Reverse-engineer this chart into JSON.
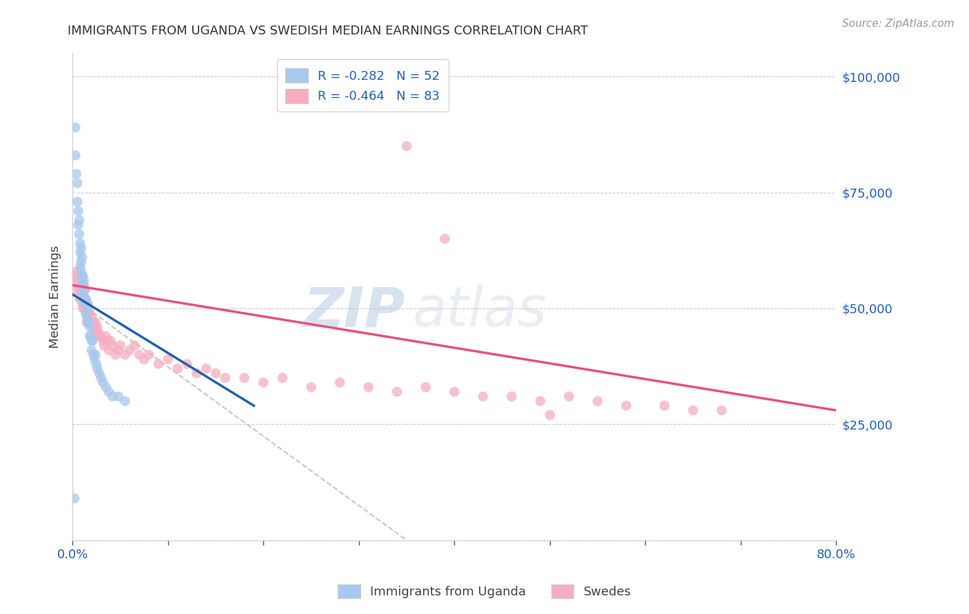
{
  "title": "IMMIGRANTS FROM UGANDA VS SWEDISH MEDIAN EARNINGS CORRELATION CHART",
  "source": "Source: ZipAtlas.com",
  "ylabel": "Median Earnings",
  "y_ticks": [
    0,
    25000,
    50000,
    75000,
    100000
  ],
  "y_tick_labels": [
    "",
    "$25,000",
    "$50,000",
    "$75,000",
    "$100,000"
  ],
  "xlim": [
    0.0,
    0.8
  ],
  "ylim": [
    0,
    105000
  ],
  "legend_blue_label": "R = -0.282   N = 52",
  "legend_pink_label": "R = -0.464   N = 83",
  "bottom_legend_blue": "Immigrants from Uganda",
  "bottom_legend_pink": "Swedes",
  "blue_color": "#a8c8ee",
  "pink_color": "#f5aec0",
  "blue_line_color": "#2060b0",
  "pink_line_color": "#e8507a",
  "watermark_zip": "ZIP",
  "watermark_atlas": "atlas",
  "blue_scatter_x": [
    0.003,
    0.003,
    0.004,
    0.005,
    0.005,
    0.006,
    0.006,
    0.007,
    0.007,
    0.008,
    0.008,
    0.008,
    0.009,
    0.009,
    0.009,
    0.01,
    0.01,
    0.01,
    0.011,
    0.011,
    0.011,
    0.012,
    0.012,
    0.013,
    0.013,
    0.014,
    0.014,
    0.015,
    0.015,
    0.016,
    0.016,
    0.017,
    0.018,
    0.018,
    0.019,
    0.02,
    0.02,
    0.021,
    0.022,
    0.023,
    0.024,
    0.025,
    0.026,
    0.028,
    0.03,
    0.032,
    0.035,
    0.038,
    0.042,
    0.048,
    0.055,
    0.002
  ],
  "blue_scatter_y": [
    89000,
    83000,
    79000,
    77000,
    73000,
    71000,
    68000,
    69000,
    66000,
    64000,
    62000,
    59000,
    63000,
    60000,
    58000,
    61000,
    57000,
    55000,
    57000,
    55000,
    53000,
    56000,
    52000,
    54000,
    51000,
    52000,
    49000,
    51000,
    48000,
    50000,
    47000,
    47000,
    46000,
    44000,
    44000,
    43000,
    41000,
    43000,
    40000,
    39000,
    40000,
    38000,
    37000,
    36000,
    35000,
    34000,
    33000,
    32000,
    31000,
    31000,
    30000,
    9000
  ],
  "pink_scatter_x": [
    0.003,
    0.004,
    0.005,
    0.005,
    0.006,
    0.007,
    0.007,
    0.008,
    0.008,
    0.009,
    0.009,
    0.01,
    0.01,
    0.011,
    0.011,
    0.012,
    0.012,
    0.013,
    0.013,
    0.014,
    0.014,
    0.015,
    0.015,
    0.016,
    0.017,
    0.017,
    0.018,
    0.019,
    0.02,
    0.021,
    0.022,
    0.023,
    0.024,
    0.025,
    0.026,
    0.027,
    0.028,
    0.03,
    0.032,
    0.033,
    0.035,
    0.037,
    0.038,
    0.04,
    0.042,
    0.045,
    0.048,
    0.05,
    0.055,
    0.06,
    0.065,
    0.07,
    0.075,
    0.08,
    0.09,
    0.1,
    0.11,
    0.12,
    0.13,
    0.14,
    0.15,
    0.16,
    0.18,
    0.2,
    0.22,
    0.25,
    0.28,
    0.31,
    0.34,
    0.37,
    0.4,
    0.43,
    0.46,
    0.49,
    0.52,
    0.55,
    0.58,
    0.62,
    0.65,
    0.68,
    0.35,
    0.39,
    0.5
  ],
  "pink_scatter_y": [
    57000,
    58000,
    56000,
    54000,
    55000,
    56000,
    53000,
    57000,
    53000,
    56000,
    52000,
    54000,
    51000,
    53000,
    50000,
    55000,
    52000,
    54000,
    50000,
    52000,
    49000,
    50000,
    47000,
    51000,
    49000,
    47000,
    49000,
    47000,
    48000,
    46000,
    47000,
    46000,
    47000,
    45000,
    46000,
    45000,
    44000,
    44000,
    43000,
    42000,
    44000,
    43000,
    41000,
    43000,
    42000,
    40000,
    41000,
    42000,
    40000,
    41000,
    42000,
    40000,
    39000,
    40000,
    38000,
    39000,
    37000,
    38000,
    36000,
    37000,
    36000,
    35000,
    35000,
    34000,
    35000,
    33000,
    34000,
    33000,
    32000,
    33000,
    32000,
    31000,
    31000,
    30000,
    31000,
    30000,
    29000,
    29000,
    28000,
    28000,
    85000,
    65000,
    27000
  ],
  "blue_line_x0": 0.0,
  "blue_line_y0": 53000,
  "blue_line_x1": 0.19,
  "blue_line_y1": 29000,
  "pink_line_x0": 0.0,
  "pink_line_y0": 55000,
  "pink_line_x1": 0.8,
  "pink_line_y1": 28000,
  "dash_line_x0": 0.002,
  "dash_line_y0": 52000,
  "dash_line_x1": 0.35,
  "dash_line_y1": 0
}
